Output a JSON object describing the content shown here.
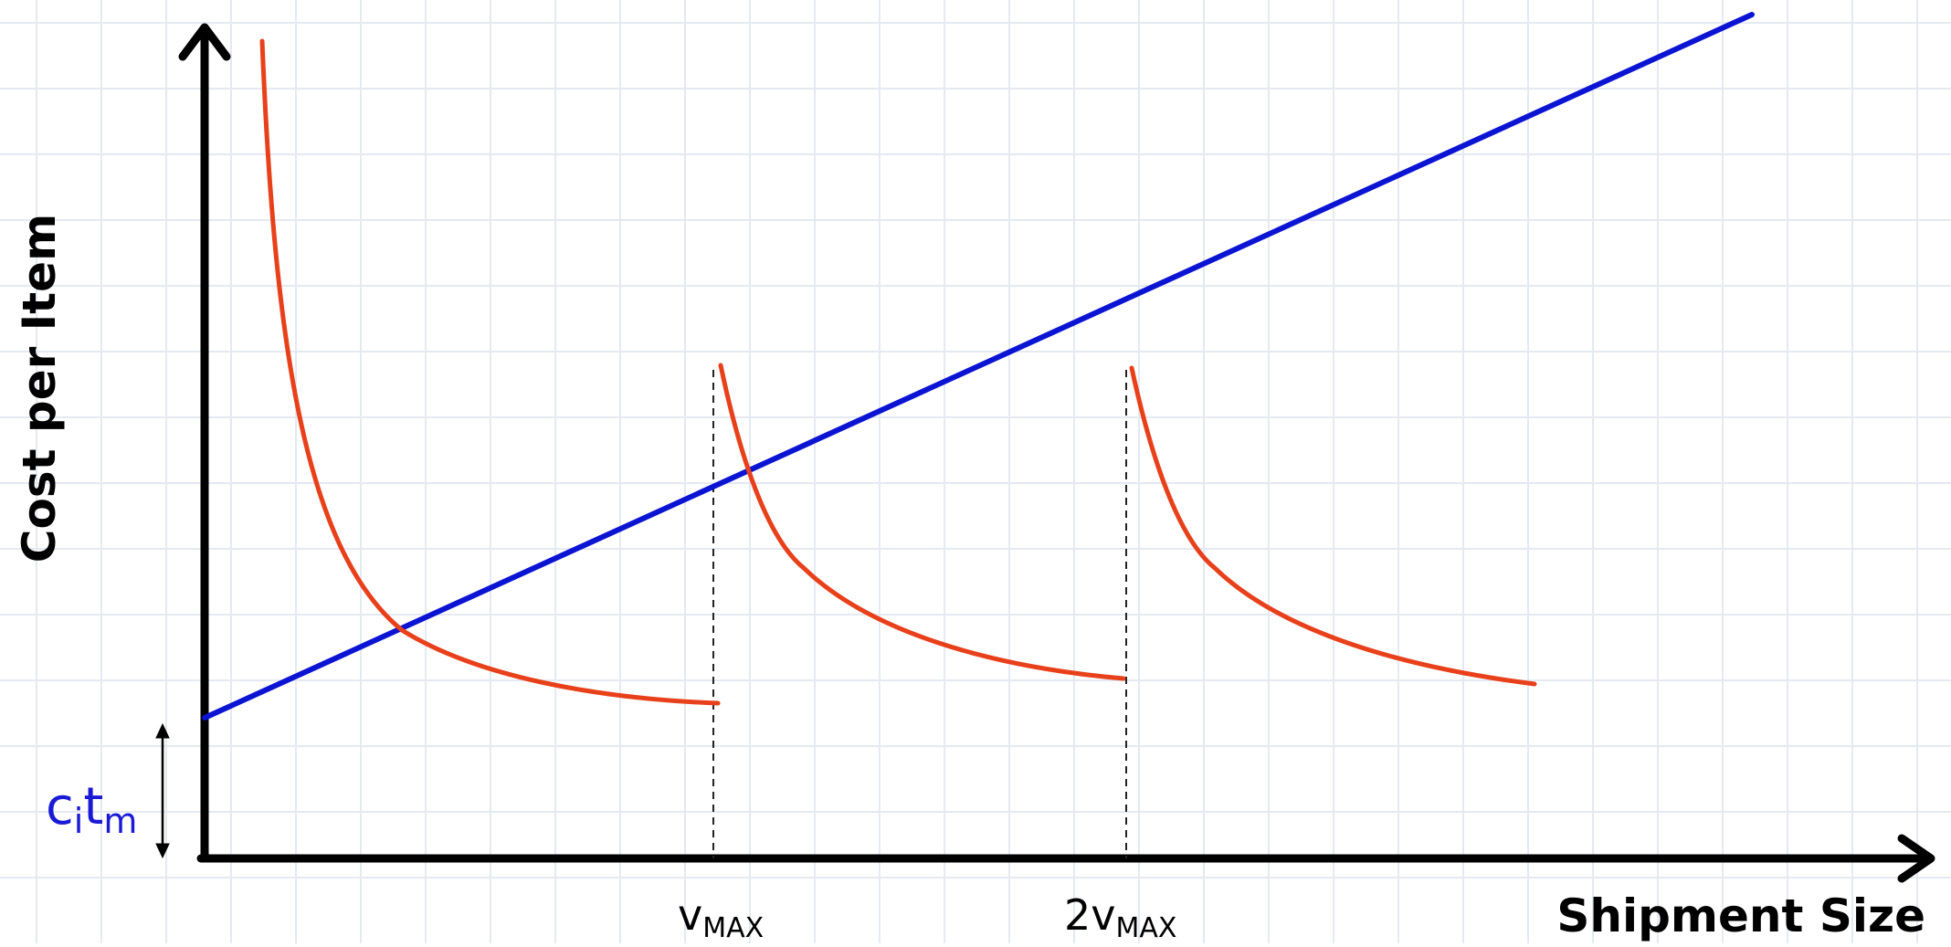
{
  "axes": {
    "y_title": "Cost per Item",
    "x_title": "Shipment Size"
  },
  "x_ticks": [
    {
      "prefix": "",
      "var": "v",
      "sub": "MAX"
    },
    {
      "prefix": "2",
      "var": "v",
      "sub": "MAX"
    }
  ],
  "intercept_label": {
    "c": "c",
    "c_sub": "i",
    "t": "t",
    "t_sub": "m"
  },
  "colors": {
    "line": "#0a14d2",
    "curve": "#e8401a",
    "axis": "#000000",
    "grid": "#e4e9f2",
    "intercept_label": "#1a1ad6"
  },
  "icons": {
    "x_arrow": "arrow-right-icon",
    "y_arrow": "arrow-up-icon",
    "bracket": "double-arrow-vertical-icon"
  }
}
